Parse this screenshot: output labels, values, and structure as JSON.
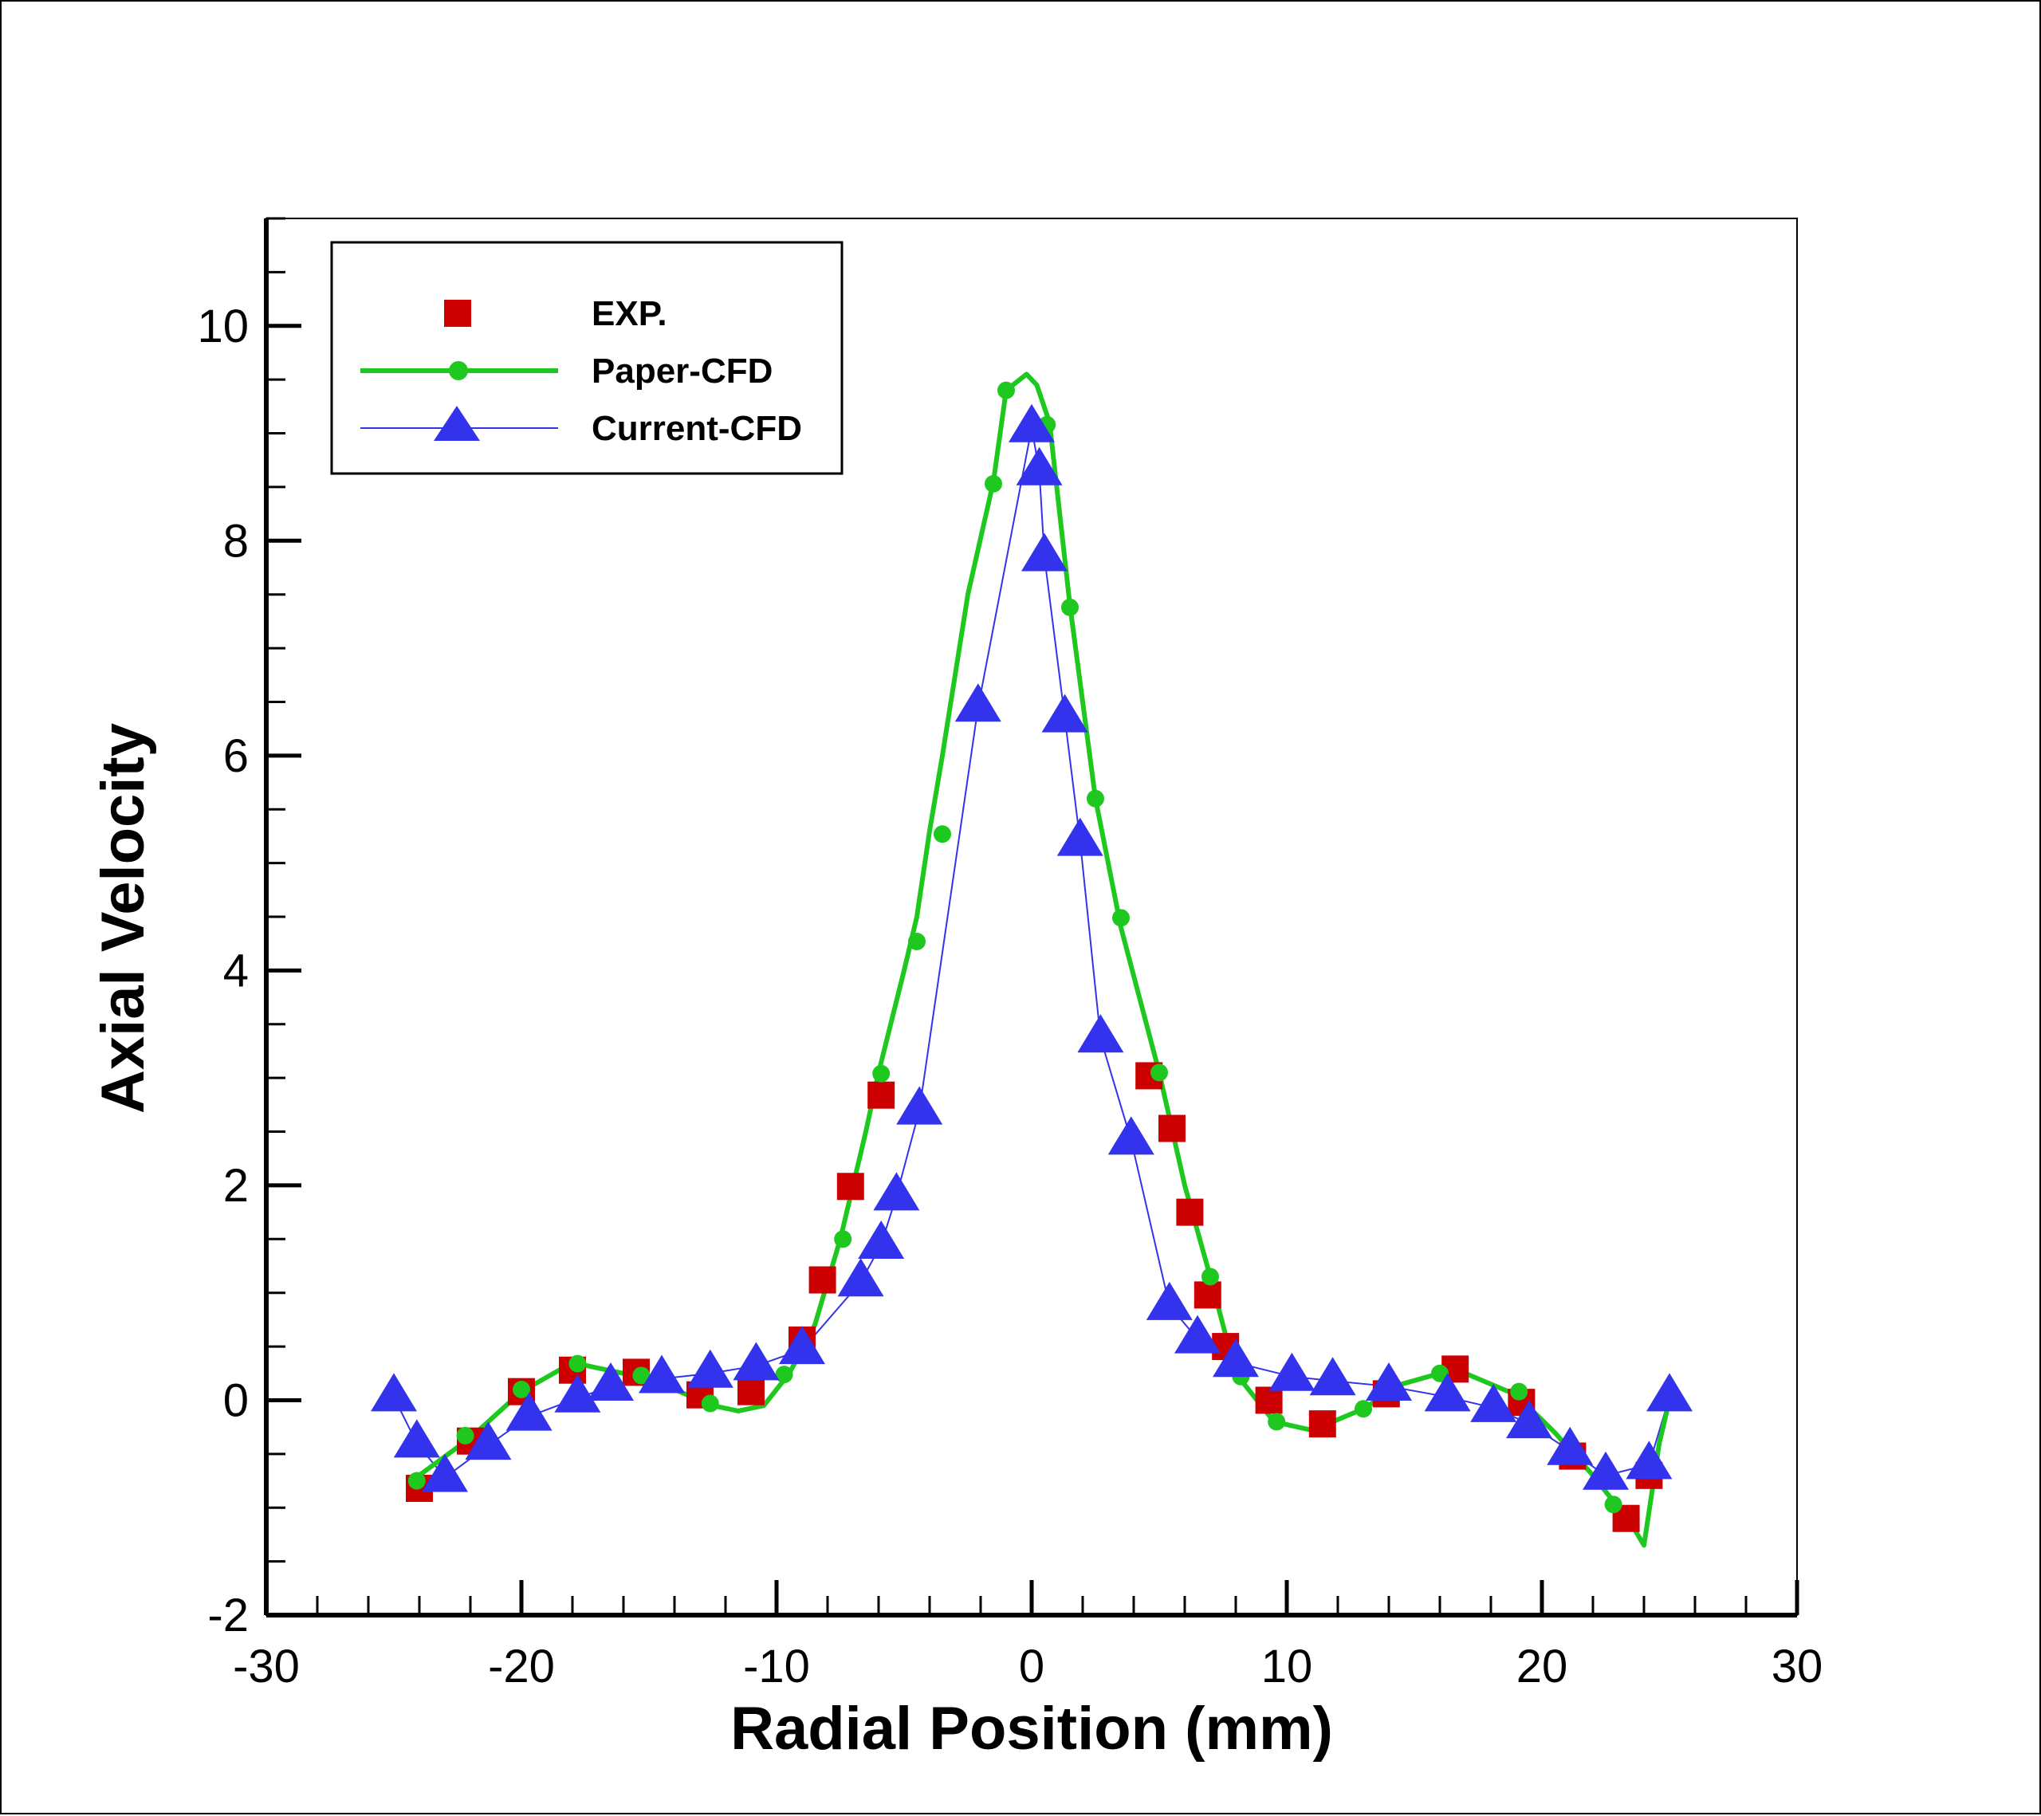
{
  "chart_data": {
    "type": "line",
    "xlabel": "Radial Position (mm)",
    "ylabel": "Axial Velocity",
    "xlim": [
      -30,
      30
    ],
    "ylim": [
      -2,
      11
    ],
    "x_ticks": [
      -30,
      -20,
      -10,
      0,
      10,
      20,
      30
    ],
    "x_tick_labels": [
      "-30",
      "-20",
      "-10",
      "0",
      "10",
      "20",
      "30"
    ],
    "y_ticks": [
      -2,
      0,
      2,
      4,
      6,
      8,
      10
    ],
    "y_tick_labels": [
      "-2",
      "0",
      "2",
      "4",
      "6",
      "8",
      "10"
    ],
    "legend_position": "top-left",
    "colors": {
      "exp": "#cc0000",
      "paper": "#1ec81e",
      "current": "#3333ee"
    },
    "series": [
      {
        "name": "EXP.",
        "style": "square-markers",
        "x": [
          -24,
          -22,
          -20,
          -18,
          -15.5,
          -13,
          -11,
          -9,
          -8.2,
          -7.1,
          -5.9,
          4.6,
          5.5,
          6.2,
          6.9,
          7.6,
          9.3,
          11.4,
          13.9,
          16.6,
          19.2,
          21.2,
          23.3,
          24.2
        ],
        "y": [
          -0.82,
          -0.38,
          0.08,
          0.28,
          0.26,
          0.05,
          0.08,
          0.56,
          1.12,
          1.99,
          2.84,
          3.02,
          2.53,
          1.75,
          0.98,
          0.5,
          0.0,
          -0.22,
          0.06,
          0.29,
          -0.02,
          -0.52,
          -1.1,
          -0.7
        ]
      },
      {
        "name": "Paper-CFD",
        "style": "line-with-circles",
        "x": [
          -24.3,
          -22,
          -20,
          -18,
          -16,
          -14.5,
          -12.5,
          -11.5,
          -10.5,
          -9.5,
          -8.5,
          -7.5,
          -6.5,
          -6,
          -5,
          -4.5,
          -4,
          -3.5,
          -2.5,
          -1.5,
          -1,
          -0.2,
          0.2,
          0.7,
          1.5,
          2.5,
          3.5,
          5,
          6,
          7,
          8,
          9.5,
          11,
          13,
          14.5,
          16,
          17,
          18,
          19,
          20.5,
          22,
          23.5,
          24,
          24.6,
          25
        ],
        "y": [
          -0.75,
          -0.35,
          0.08,
          0.35,
          0.25,
          0.15,
          -0.05,
          -0.1,
          -0.05,
          0.25,
          0.7,
          1.5,
          2.5,
          3.05,
          4.0,
          4.5,
          5.3,
          6.0,
          7.5,
          8.55,
          9.4,
          9.55,
          9.45,
          9.1,
          7.4,
          5.6,
          4.4,
          3.05,
          2.0,
          1.15,
          0.25,
          -0.2,
          -0.28,
          -0.08,
          0.15,
          0.25,
          0.25,
          0.15,
          0.05,
          -0.3,
          -0.7,
          -1.15,
          -1.35,
          -0.4,
          0.0
        ],
        "marker_x": [
          -24.1,
          -22.2,
          -20,
          -17.8,
          -15.3,
          -12.6,
          -9.7,
          -7.4,
          -5.9,
          -4.5,
          -3.5,
          -1.5,
          -1,
          0.6,
          1.5,
          2.5,
          3.5,
          5,
          7,
          8.2,
          9.6,
          13,
          16,
          19.1,
          21,
          22.8
        ],
        "marker_y": [
          -0.75,
          -0.33,
          0.1,
          0.34,
          0.23,
          -0.03,
          0.24,
          1.5,
          3.04,
          4.27,
          5.27,
          8.53,
          9.4,
          9.08,
          7.38,
          5.6,
          4.49,
          3.05,
          1.15,
          0.22,
          -0.2,
          -0.08,
          0.25,
          0.08,
          -0.45,
          -0.97
        ]
      },
      {
        "name": "Current-CFD",
        "style": "line-with-triangles",
        "x": [
          -25,
          -24.1,
          -23,
          -21.3,
          -19.7,
          -17.8,
          -16.5,
          -14.5,
          -12.6,
          -10.8,
          -9,
          -6.7,
          -5.9,
          -5.3,
          -4.4,
          -2.1,
          0,
          0.3,
          0.5,
          1.3,
          1.9,
          2.7,
          3.9,
          5.4,
          6.5,
          8,
          10.2,
          11.8,
          14,
          16.3,
          18.1,
          19.5,
          21.1,
          22.5,
          24.2,
          25
        ],
        "y": [
          0.03,
          -0.4,
          -0.72,
          -0.42,
          -0.15,
          0.02,
          0.13,
          0.2,
          0.25,
          0.32,
          0.47,
          1.1,
          1.45,
          1.9,
          2.7,
          6.45,
          9.05,
          8.65,
          7.85,
          6.35,
          5.2,
          3.37,
          2.42,
          0.88,
          0.57,
          0.35,
          0.22,
          0.18,
          0.13,
          0.03,
          -0.07,
          -0.22,
          -0.47,
          -0.7,
          -0.6,
          0.03
        ]
      }
    ]
  }
}
